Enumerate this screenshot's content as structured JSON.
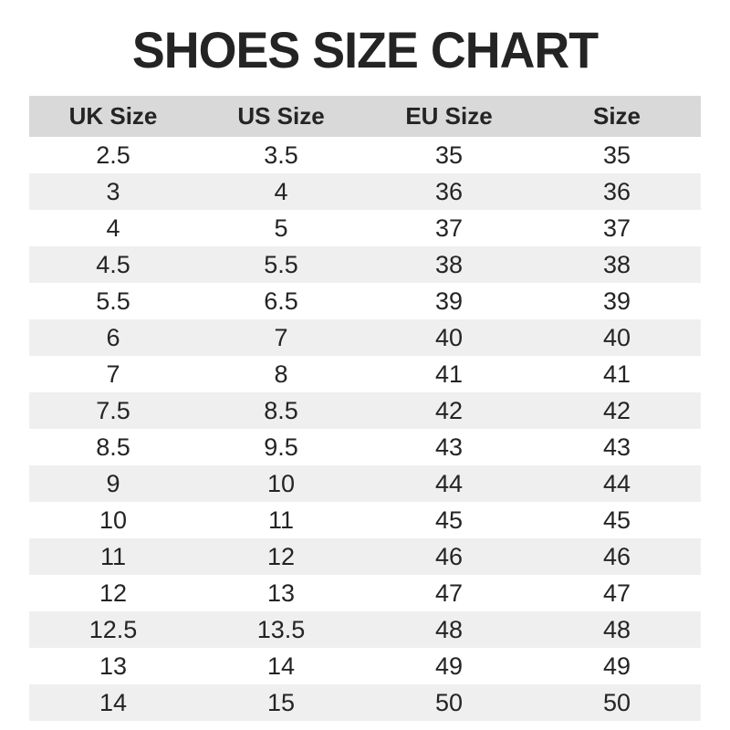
{
  "title": "SHOES SIZE CHART",
  "colors": {
    "header_bg": "#d9d9d9",
    "stripe_bg": "#efefef",
    "text": "#242424",
    "page_bg": "#ffffff"
  },
  "chart_data": {
    "type": "table",
    "title": "SHOES SIZE CHART",
    "columns": [
      "UK Size",
      "US Size",
      "EU Size",
      "Size"
    ],
    "rows": [
      [
        "2.5",
        "3.5",
        "35",
        "35"
      ],
      [
        "3",
        "4",
        "36",
        "36"
      ],
      [
        "4",
        "5",
        "37",
        "37"
      ],
      [
        "4.5",
        "5.5",
        "38",
        "38"
      ],
      [
        "5.5",
        "6.5",
        "39",
        "39"
      ],
      [
        "6",
        "7",
        "40",
        "40"
      ],
      [
        "7",
        "8",
        "41",
        "41"
      ],
      [
        "7.5",
        "8.5",
        "42",
        "42"
      ],
      [
        "8.5",
        "9.5",
        "43",
        "43"
      ],
      [
        "9",
        "10",
        "44",
        "44"
      ],
      [
        "10",
        "11",
        "45",
        "45"
      ],
      [
        "11",
        "12",
        "46",
        "46"
      ],
      [
        "12",
        "13",
        "47",
        "47"
      ],
      [
        "12.5",
        "13.5",
        "48",
        "48"
      ],
      [
        "13",
        "14",
        "49",
        "49"
      ],
      [
        "14",
        "15",
        "50",
        "50"
      ]
    ],
    "layout": {
      "zebra_striping": true,
      "header_position": "top",
      "grid": false
    }
  }
}
